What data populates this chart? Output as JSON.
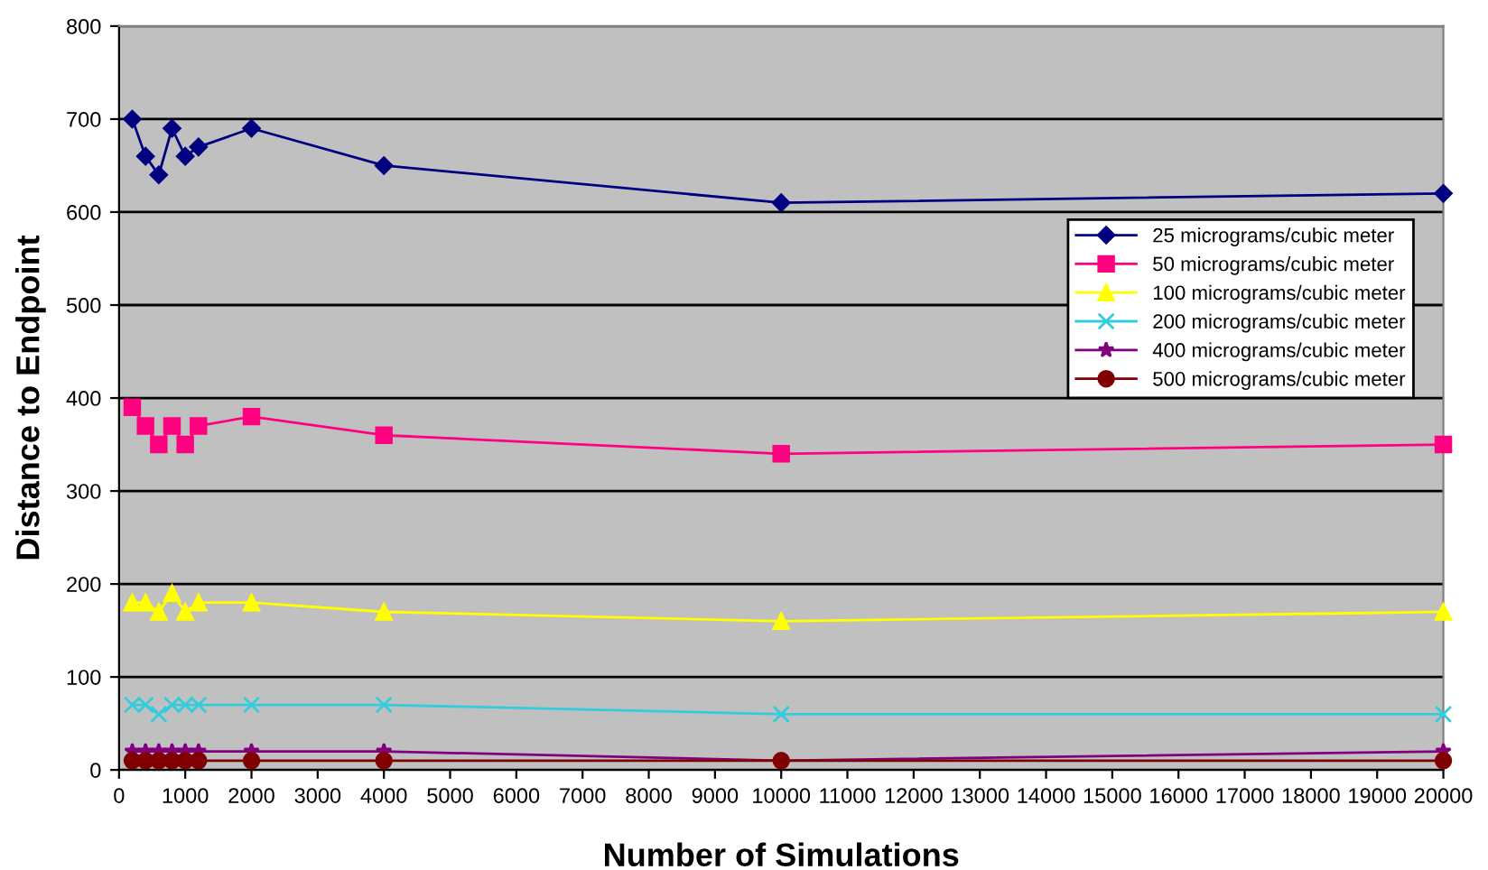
{
  "chart_data": {
    "type": "line",
    "xlabel": "Number of Simulations",
    "ylabel": "Distance to Endpoint",
    "x": [
      200,
      400,
      600,
      800,
      1000,
      1200,
      2000,
      4000,
      10000,
      20000
    ],
    "series": [
      {
        "name": "25 micrograms/cubic meter",
        "color": "#000080",
        "marker": "diamond",
        "values": [
          700,
          660,
          640,
          690,
          660,
          670,
          690,
          650,
          610,
          620
        ]
      },
      {
        "name": "50 micrograms/cubic meter",
        "color": "#ff0080",
        "marker": "square",
        "values": [
          390,
          370,
          350,
          370,
          350,
          370,
          380,
          360,
          340,
          350
        ]
      },
      {
        "name": "100 micrograms/cubic meter",
        "color": "#ffff00",
        "marker": "triangle",
        "values": [
          180,
          180,
          170,
          190,
          170,
          180,
          180,
          170,
          160,
          170
        ]
      },
      {
        "name": "200 micrograms/cubic meter",
        "color": "#33ccdd",
        "marker": "cross",
        "values": [
          70,
          70,
          60,
          70,
          70,
          70,
          70,
          70,
          60,
          60
        ]
      },
      {
        "name": "400 micrograms/cubic meter",
        "color": "#800080",
        "marker": "star",
        "values": [
          20,
          20,
          20,
          20,
          20,
          20,
          20,
          20,
          10,
          20
        ]
      },
      {
        "name": "500 micrograms/cubic meter",
        "color": "#800000",
        "marker": "circle",
        "values": [
          10,
          10,
          10,
          10,
          10,
          10,
          10,
          10,
          10,
          10
        ]
      }
    ],
    "xlim": [
      0,
      20000
    ],
    "xticks": [
      0,
      1000,
      2000,
      3000,
      4000,
      5000,
      6000,
      7000,
      8000,
      9000,
      10000,
      11000,
      12000,
      13000,
      14000,
      15000,
      16000,
      17000,
      18000,
      19000,
      20000
    ],
    "ylim": [
      0,
      800
    ],
    "yticks": [
      0,
      100,
      200,
      300,
      400,
      500,
      600,
      700,
      800
    ],
    "grid": "y",
    "legend": "right"
  }
}
